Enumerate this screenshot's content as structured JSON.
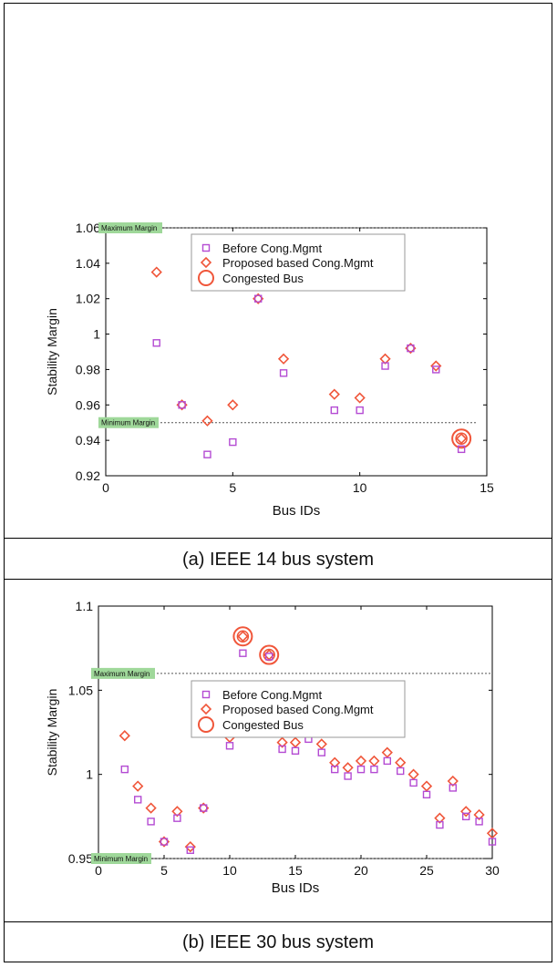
{
  "colors": {
    "before": "#b44bd3",
    "proposed": "#f0563a",
    "congested": "#f0563a",
    "ref_line": "#555555",
    "ref_label_bg": "#9fd89a"
  },
  "charts": [
    {
      "caption": "(a) IEEE 14 bus system",
      "type": "scatter",
      "xlabel": "Bus IDs",
      "ylabel": "Stability Margin",
      "xlim": [
        0,
        15
      ],
      "ylim": [
        0.92,
        1.06
      ],
      "xticks": [
        "0",
        "5",
        "10",
        "15"
      ],
      "yticks": [
        "0.92",
        "0.94",
        "0.96",
        "0.98",
        "1",
        "1.02",
        "1.04",
        "1.06"
      ],
      "max_margin": {
        "label": "Maximum Margin",
        "value": 1.06
      },
      "min_margin": {
        "label": "Minimum Margin",
        "value": 0.95
      },
      "legend": {
        "before": "Before Cong.Mgmt",
        "proposed": "Proposed based Cong.Mgmt",
        "congested": "Congested Bus"
      }
    },
    {
      "caption": "(b) IEEE 30 bus system",
      "type": "scatter",
      "xlabel": "Bus IDs",
      "ylabel": "Stability Margin",
      "xlim": [
        0,
        30
      ],
      "ylim": [
        0.95,
        1.1
      ],
      "xticks": [
        "0",
        "5",
        "10",
        "15",
        "20",
        "25",
        "30"
      ],
      "yticks": [
        "0.95",
        "1",
        "1.05",
        "1.1"
      ],
      "max_margin": {
        "label": "Maximum Margin",
        "value": 1.06
      },
      "min_margin": {
        "label": "Minimum Margin",
        "value": 0.95
      },
      "legend": {
        "before": "Before Cong.Mgmt",
        "proposed": "Proposed based Cong.Mgmt",
        "congested": "Congested Bus"
      }
    }
  ],
  "chart_data": [
    {
      "type": "scatter",
      "title": "",
      "xlabel": "Bus IDs",
      "ylabel": "Stability Margin",
      "xlim": [
        0,
        15
      ],
      "ylim": [
        0.92,
        1.06
      ],
      "series": [
        {
          "name": "Before Cong.Mgmt",
          "marker": "square",
          "x": [
            2,
            3,
            4,
            5,
            6,
            7,
            9,
            10,
            11,
            12,
            13,
            14
          ],
          "y": [
            0.995,
            0.96,
            0.932,
            0.939,
            1.02,
            0.978,
            0.957,
            0.957,
            0.982,
            0.992,
            0.98,
            0.935
          ]
        },
        {
          "name": "Proposed based Cong.Mgmt",
          "marker": "diamond",
          "x": [
            2,
            3,
            4,
            5,
            6,
            7,
            9,
            10,
            11,
            12,
            13,
            14
          ],
          "y": [
            1.035,
            0.96,
            0.951,
            0.96,
            1.02,
            0.986,
            0.966,
            0.964,
            0.986,
            0.992,
            0.982,
            0.941
          ]
        },
        {
          "name": "Congested Bus",
          "marker": "circle",
          "x": [
            14
          ],
          "y": [
            0.941
          ]
        }
      ]
    },
    {
      "type": "scatter",
      "title": "",
      "xlabel": "Bus IDs",
      "ylabel": "Stability Margin",
      "xlim": [
        0,
        30
      ],
      "ylim": [
        0.95,
        1.1
      ],
      "series": [
        {
          "name": "Before Cong.Mgmt",
          "marker": "square",
          "x": [
            2,
            3,
            4,
            5,
            6,
            7,
            8,
            9,
            10,
            11,
            12,
            13,
            14,
            15,
            16,
            17,
            18,
            19,
            20,
            21,
            22,
            23,
            24,
            25,
            26,
            27,
            28,
            29,
            30
          ],
          "y": [
            1.003,
            0.985,
            0.972,
            0.96,
            0.974,
            0.955,
            0.98,
            1.025,
            1.017,
            1.072,
            1.035,
            1.07,
            1.015,
            1.014,
            1.021,
            1.013,
            1.003,
            0.999,
            1.003,
            1.003,
            1.008,
            1.002,
            0.995,
            0.988,
            0.97,
            0.992,
            0.975,
            0.972,
            0.96
          ]
        },
        {
          "name": "Proposed based Cong.Mgmt",
          "marker": "diamond",
          "x": [
            2,
            3,
            4,
            5,
            6,
            7,
            8,
            9,
            10,
            11,
            12,
            13,
            14,
            15,
            16,
            17,
            18,
            19,
            20,
            21,
            22,
            23,
            24,
            25,
            26,
            27,
            28,
            29,
            30
          ],
          "y": [
            1.023,
            0.993,
            0.98,
            0.96,
            0.978,
            0.957,
            0.98,
            1.028,
            1.022,
            1.082,
            1.04,
            1.071,
            1.019,
            1.019,
            1.025,
            1.018,
            1.007,
            1.004,
            1.008,
            1.008,
            1.013,
            1.007,
            1.0,
            0.993,
            0.974,
            0.996,
            0.978,
            0.976,
            0.965
          ]
        },
        {
          "name": "Congested Bus",
          "marker": "circle",
          "x": [
            11,
            13
          ],
          "y": [
            1.082,
            1.071
          ]
        }
      ]
    }
  ]
}
